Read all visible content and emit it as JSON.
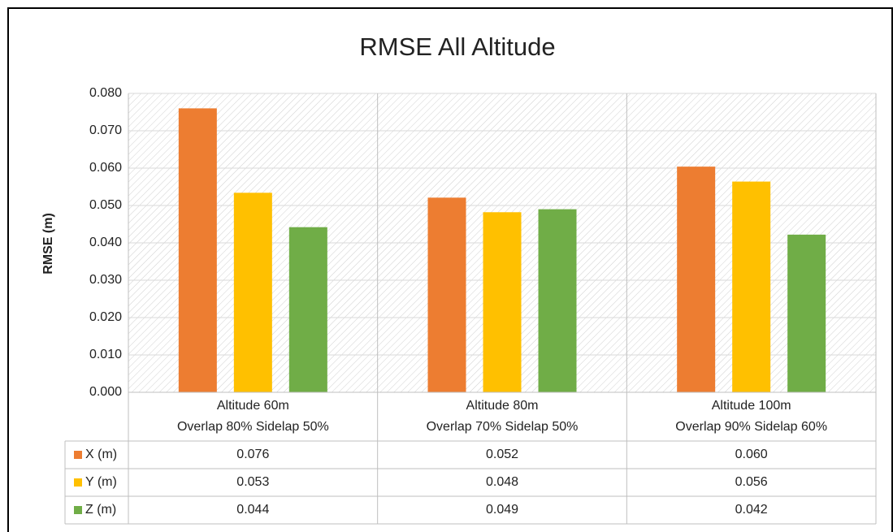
{
  "chart_data": {
    "type": "bar",
    "title": "RMSE All Altitude",
    "y_label": "RMSE (m)",
    "categories": [
      [
        "Altitude 60m",
        "Overlap 80%   Sidelap 50%"
      ],
      [
        "Altitude 80m",
        "Overlap 70%   Sidelap 50%"
      ],
      [
        "Altitude 100m",
        "Overlap 90%   Sidelap 60%"
      ]
    ],
    "series": [
      {
        "name": "X (m)",
        "color": "#ed7d31",
        "values": [
          0.076,
          0.0521,
          0.0604
        ],
        "value_labels": [
          "0.076",
          "0.052",
          "0.060"
        ]
      },
      {
        "name": "Y (m)",
        "color": "#ffc000",
        "values": [
          0.0534,
          0.0482,
          0.0564
        ],
        "value_labels": [
          "0.053",
          "0.048",
          "0.056"
        ]
      },
      {
        "name": "Z (m)",
        "color": "#70ad47",
        "values": [
          0.0442,
          0.049,
          0.0422
        ],
        "value_labels": [
          "0.044",
          "0.049",
          "0.042"
        ]
      }
    ],
    "ylim": [
      0,
      0.08
    ],
    "yticks": [
      {
        "value": 0,
        "label": "0.000"
      },
      {
        "value": 0.01,
        "label": "0.010"
      },
      {
        "value": 0.02,
        "label": "0.020"
      },
      {
        "value": 0.03,
        "label": "0.030"
      },
      {
        "value": 0.04,
        "label": "0.040"
      },
      {
        "value": 0.05,
        "label": "0.050"
      },
      {
        "value": 0.06,
        "label": "0.060"
      },
      {
        "value": 0.07,
        "label": "0.070"
      },
      {
        "value": 0.08,
        "label": "0.080"
      }
    ],
    "grid": true
  }
}
